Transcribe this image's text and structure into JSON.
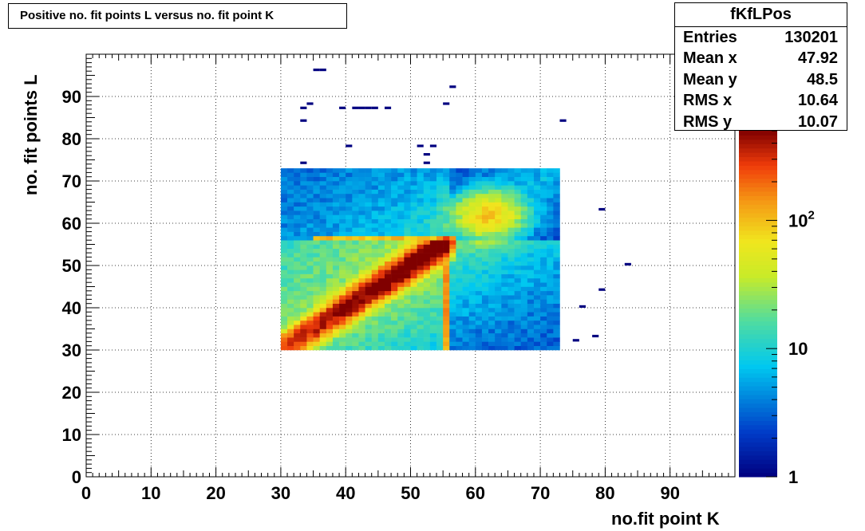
{
  "title": "Positive no. fit points L versus no. fit point K",
  "stats": {
    "name": "fKfLPos",
    "rows": [
      {
        "label": "Entries",
        "value": "130201"
      },
      {
        "label": "Mean x",
        "value": "47.92"
      },
      {
        "label": "Mean y",
        "value": "48.5"
      },
      {
        "label": "RMS x",
        "value": "10.64"
      },
      {
        "label": "RMS y",
        "value": "10.07"
      }
    ]
  },
  "chart_data": {
    "type": "heatmap",
    "title": "Positive no. fit points L versus no. fit point K",
    "xlabel": "no.fit point K",
    "ylabel": "no. fit points  L",
    "xlim": [
      0,
      100
    ],
    "ylim": [
      0,
      100
    ],
    "xticks": [
      0,
      10,
      20,
      30,
      40,
      50,
      60,
      70,
      80,
      90
    ],
    "yticks": [
      0,
      10,
      20,
      30,
      40,
      50,
      60,
      70,
      80,
      90
    ],
    "grid": true,
    "color_scale": {
      "type": "log",
      "min": 1,
      "max": 500,
      "tick_labels": [
        "1",
        "10",
        "10^2"
      ],
      "position": "right"
    },
    "dense_region": {
      "x_range": [
        30,
        73
      ],
      "y_range": [
        30,
        73
      ],
      "bin_width": 1
    },
    "features": [
      {
        "description": "diagonal ridge K = L",
        "from": [
          30,
          30
        ],
        "to": [
          56,
          56
        ],
        "peak_count": 500
      },
      {
        "description": "horizontal band",
        "y": 56,
        "x_range": [
          35,
          56
        ],
        "level": 180
      },
      {
        "description": "vertical band",
        "x": 56,
        "y_range": [
          30,
          56
        ],
        "level": 140
      },
      {
        "description": "hot spot",
        "x": 62,
        "y": 62,
        "level": 150
      }
    ],
    "isolated_points": [
      [
        35,
        96
      ],
      [
        36,
        96
      ],
      [
        56,
        92
      ],
      [
        33,
        87
      ],
      [
        34,
        88
      ],
      [
        39,
        87
      ],
      [
        41,
        87
      ],
      [
        42,
        87
      ],
      [
        43,
        87
      ],
      [
        44,
        87
      ],
      [
        46,
        87
      ],
      [
        55,
        88
      ],
      [
        33,
        84
      ],
      [
        73,
        84
      ],
      [
        40,
        78
      ],
      [
        51,
        78
      ],
      [
        53,
        78
      ],
      [
        52,
        76
      ],
      [
        33,
        74
      ],
      [
        52,
        74
      ],
      [
        79,
        63
      ],
      [
        83,
        50
      ],
      [
        79,
        44
      ],
      [
        76,
        40
      ],
      [
        75,
        32
      ],
      [
        78,
        33
      ]
    ]
  },
  "colors": {
    "accent": "#000000",
    "low": "#00007f",
    "high": "#7f0000"
  }
}
